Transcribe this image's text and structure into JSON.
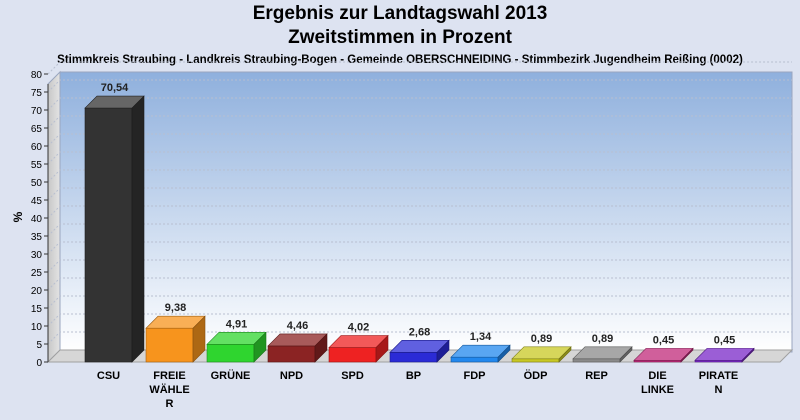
{
  "chart_data": {
    "type": "bar",
    "title": "Ergebnis zur Landtagswahl 2013",
    "subtitle_line": "Zweitstimmen in Prozent",
    "subtitle": "Stimmkreis Straubing - Landkreis Straubing-Bogen - Gemeinde OBERSCHNEIDING - Stimmbezirk Jugendheim Reißing (0002)",
    "ylabel": "%",
    "xlabel": "",
    "ylim": [
      0,
      80
    ],
    "yticks": [
      0,
      5,
      10,
      15,
      20,
      25,
      30,
      35,
      40,
      45,
      50,
      55,
      60,
      65,
      70,
      75,
      80
    ],
    "grid": true,
    "categories": [
      [
        "CSU"
      ],
      [
        "FREIE",
        "WÄHLE",
        "R"
      ],
      [
        "GRÜNE"
      ],
      [
        "NPD"
      ],
      [
        "SPD"
      ],
      [
        "BP"
      ],
      [
        "FDP"
      ],
      [
        "ÖDP"
      ],
      [
        "REP"
      ],
      [
        "DIE",
        "LINKE"
      ],
      [
        "PIRATE",
        "N"
      ]
    ],
    "values": [
      70.54,
      9.38,
      4.91,
      4.46,
      4.02,
      2.68,
      1.34,
      0.89,
      0.89,
      0.45,
      0.45
    ],
    "value_labels": [
      "70,54",
      "9,38",
      "4,91",
      "4,46",
      "4,02",
      "2,68",
      "1,34",
      "0,89",
      "0,89",
      "0,45",
      "0,45"
    ],
    "colors": [
      "#333333",
      "#f7941d",
      "#2fd52f",
      "#8b2323",
      "#ee2222",
      "#2b2bd6",
      "#2288ee",
      "#c8c824",
      "#8a8a8a",
      "#c02a7a",
      "#7a28c8"
    ]
  }
}
